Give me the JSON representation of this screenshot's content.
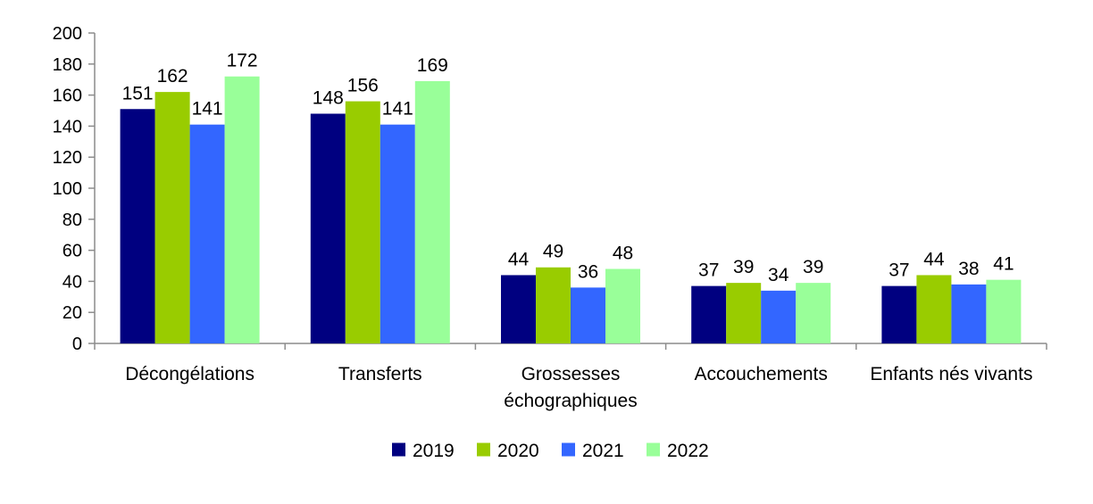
{
  "chart_data": {
    "type": "bar",
    "categories": [
      [
        "Décongélations"
      ],
      [
        "Transferts"
      ],
      [
        "Grossesses",
        "échographiques"
      ],
      [
        "Accouchements"
      ],
      [
        "Enfants nés vivants"
      ]
    ],
    "series": [
      {
        "name": "2019",
        "color": "#000080",
        "values": [
          151,
          148,
          44,
          37,
          37
        ]
      },
      {
        "name": "2020",
        "color": "#99cc00",
        "values": [
          162,
          156,
          49,
          39,
          44
        ]
      },
      {
        "name": "2021",
        "color": "#3366ff",
        "values": [
          141,
          141,
          36,
          34,
          38
        ]
      },
      {
        "name": "2022",
        "color": "#99ff99",
        "values": [
          172,
          169,
          48,
          39,
          41
        ]
      }
    ],
    "yticks": [
      "0",
      "20",
      "40",
      "60",
      "80",
      "100",
      "120",
      "140",
      "160",
      "180",
      "200"
    ],
    "ylim": [
      0,
      200
    ],
    "grid": false,
    "legend": "bottom-center",
    "data_labels": true
  }
}
